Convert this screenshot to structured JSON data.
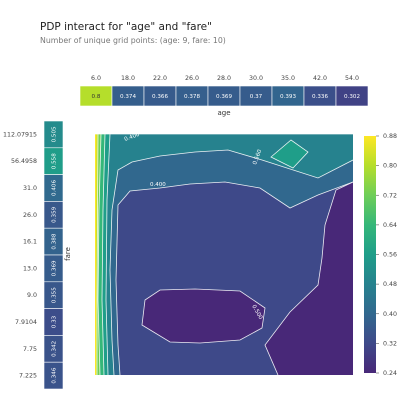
{
  "title": "PDP interact for \"age\" and \"fare\"",
  "subtitle": "Number of unique grid points: (age: 9, fare: 10)",
  "chart_data": {
    "type": "heatmap",
    "x_axis": {
      "label": "age",
      "ticks": [
        "6.0",
        "18.0",
        "22.0",
        "26.0",
        "28.0",
        "30.0",
        "35.0",
        "42.0",
        "54.0"
      ],
      "marginal_values": [
        0.8,
        0.374,
        0.366,
        0.378,
        0.369,
        0.37,
        0.393,
        0.336,
        0.302
      ],
      "marginal_labels": [
        "0.8",
        "0.374",
        "0.366",
        "0.378",
        "0.369",
        "0.37",
        "0.393",
        "0.336",
        "0.302"
      ]
    },
    "y_axis": {
      "label": "fare",
      "ticks": [
        "112.07915",
        "56.4958",
        "31.0",
        "26.0",
        "16.1",
        "13.0",
        "9.0",
        "7.9104",
        "7.75",
        "7.225"
      ],
      "marginal_values": [
        0.505,
        0.558,
        0.406,
        0.359,
        0.388,
        0.369,
        0.355,
        0.33,
        0.342,
        0.346
      ],
      "marginal_labels": [
        "0.505",
        "0.558",
        "0.406",
        "0.359",
        "0.388",
        "0.369",
        "0.355",
        "0.33",
        "0.342",
        "0.346"
      ]
    },
    "colorbar": {
      "ticks": [
        "0.88",
        "0.80",
        "0.72",
        "0.64",
        "0.56",
        "0.48",
        "0.40",
        "0.32",
        "0.24"
      ],
      "range": [
        0.24,
        0.88
      ],
      "colormap": "viridis"
    },
    "contour_labels": [
      "0.400",
      "0.400",
      "0.560",
      "0.500"
    ],
    "colors": {
      "c_0.88": "#fde725",
      "c_0.80": "#b5de2b",
      "c_0.72": "#6ece58",
      "c_0.64": "#35b779",
      "c_0.56": "#1f9e89",
      "c_0.48": "#26828e",
      "c_0.40": "#31688e",
      "c_0.32": "#3e4989",
      "c_0.24": "#482878"
    }
  }
}
